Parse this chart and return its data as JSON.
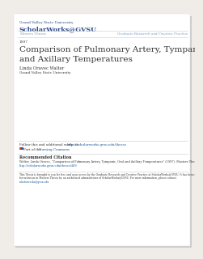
{
  "bg_color": "#f0ede8",
  "page_bg": "#ffffff",
  "university_line1": "Grand Valley State University",
  "university_line2": "ScholarWorks@GVSU",
  "nav_left": "Masters Theses",
  "nav_right": "Graduate Research and Creative Practice",
  "year": "1997",
  "title_line1": "Comparison of Pulmonary Artery, Tympanic, Oral,",
  "title_line2": "and Axillary Temperatures",
  "author_name": "Linda Oravec Walter",
  "author_affil": "Grand Valley State University",
  "follow_text": "Follow this and additional works at: ",
  "follow_link": "http://scholarworks.gvsu.edu/theses",
  "part_of_text": "Part of the ",
  "part_of_link": "Nursing Commons",
  "rec_citation_header": "Recommended Citation",
  "rec_citation_body1": "Walter, Linda Oravec, \"Comparison of Pulmonary Artery, Tympanic, Oral and Axillary Temperatures\" (1997). Masters Theses. 489.",
  "rec_citation_link": "http://scholarworks.gvsu.edu/theses/489",
  "disclaimer_line1": "This Thesis is brought to you for free and open access by the Graduate Research and Creative Practice at ScholarWorks@GVSU. It has been accepted",
  "disclaimer_line2": "for inclusion in Masters Theses by an authorized administrator of ScholarWorks@GVSU. For more information, please contact",
  "disclaimer_line3": "scholarworks@gvsu.edu.",
  "link_color": "#1a5599",
  "text_color": "#333333",
  "dark_blue": "#2a4a8a",
  "nav_color": "#7799bb",
  "separator_color": "#cccccc"
}
